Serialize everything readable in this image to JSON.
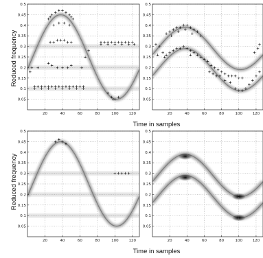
{
  "figure": {
    "x_axis_label": "Time in samples",
    "y_axis_label": "Reduced frequency"
  },
  "chart_data": [
    {
      "type": "scatter",
      "panel": "top-left",
      "xlim": [
        0,
        128
      ],
      "ylim": [
        0,
        0.5
      ],
      "xticks": [
        20,
        40,
        60,
        80,
        100,
        120
      ],
      "yticks": [
        0.05,
        0.1,
        0.15,
        0.2,
        0.25,
        0.3,
        0.35,
        0.4,
        0.45,
        0.5
      ],
      "grid": true,
      "background_curve": {
        "center": 0.25,
        "amplitude": 0.2,
        "period": 128,
        "phase_peak": 38
      },
      "horizontal_bands": [
        0.1,
        0.2,
        0.3
      ],
      "points": [
        [
          28,
          0.45
        ],
        [
          32,
          0.46
        ],
        [
          36,
          0.47
        ],
        [
          40,
          0.47
        ],
        [
          44,
          0.46
        ],
        [
          48,
          0.45
        ],
        [
          26,
          0.44
        ],
        [
          50,
          0.44
        ],
        [
          24,
          0.43
        ],
        [
          52,
          0.43
        ],
        [
          30,
          0.4
        ],
        [
          36,
          0.41
        ],
        [
          42,
          0.41
        ],
        [
          48,
          0.4
        ],
        [
          26,
          0.32
        ],
        [
          30,
          0.32
        ],
        [
          34,
          0.33
        ],
        [
          38,
          0.33
        ],
        [
          42,
          0.33
        ],
        [
          46,
          0.32
        ],
        [
          50,
          0.32
        ],
        [
          24,
          0.22
        ],
        [
          28,
          0.21
        ],
        [
          34,
          0.2
        ],
        [
          40,
          0.2
        ],
        [
          46,
          0.2
        ],
        [
          50,
          0.21
        ],
        [
          8,
          0.11
        ],
        [
          12,
          0.11
        ],
        [
          16,
          0.11
        ],
        [
          20,
          0.11
        ],
        [
          24,
          0.11
        ],
        [
          28,
          0.11
        ],
        [
          32,
          0.11
        ],
        [
          36,
          0.11
        ],
        [
          40,
          0.11
        ],
        [
          44,
          0.11
        ],
        [
          48,
          0.11
        ],
        [
          52,
          0.11
        ],
        [
          56,
          0.11
        ],
        [
          60,
          0.11
        ],
        [
          64,
          0.11
        ],
        [
          8,
          0.1
        ],
        [
          16,
          0.1
        ],
        [
          24,
          0.1
        ],
        [
          32,
          0.1
        ],
        [
          40,
          0.1
        ],
        [
          48,
          0.1
        ],
        [
          56,
          0.1
        ],
        [
          64,
          0.1
        ],
        [
          3,
          0.18
        ],
        [
          5,
          0.2
        ],
        [
          12,
          0.2
        ],
        [
          62,
          0.2
        ],
        [
          66,
          0.25
        ],
        [
          70,
          0.28
        ],
        [
          84,
          0.32
        ],
        [
          88,
          0.32
        ],
        [
          92,
          0.32
        ],
        [
          96,
          0.32
        ],
        [
          100,
          0.32
        ],
        [
          104,
          0.32
        ],
        [
          108,
          0.32
        ],
        [
          112,
          0.32
        ],
        [
          116,
          0.32
        ],
        [
          120,
          0.32
        ],
        [
          84,
          0.31
        ],
        [
          92,
          0.31
        ],
        [
          100,
          0.31
        ],
        [
          108,
          0.31
        ],
        [
          116,
          0.31
        ],
        [
          122,
          0.31
        ],
        [
          96,
          0.06
        ],
        [
          98,
          0.05
        ],
        [
          100,
          0.05
        ],
        [
          104,
          0.06
        ],
        [
          92,
          0.08
        ]
      ]
    },
    {
      "type": "scatter",
      "panel": "top-right",
      "xlim": [
        0,
        128
      ],
      "ylim": [
        0,
        0.5
      ],
      "xticks": [
        20,
        40,
        60,
        80,
        100,
        120
      ],
      "yticks": [
        0.05,
        0.1,
        0.15,
        0.2,
        0.25,
        0.3,
        0.35,
        0.4,
        0.45,
        0.5
      ],
      "grid": true,
      "background_curves": [
        {
          "center": 0.29,
          "amplitude": 0.1,
          "period": 128,
          "phase_peak": 38
        },
        {
          "center": 0.19,
          "amplitude": 0.1,
          "period": 128,
          "phase_peak": 38
        }
      ],
      "points": [
        [
          16,
          0.36
        ],
        [
          20,
          0.37
        ],
        [
          24,
          0.38
        ],
        [
          28,
          0.39
        ],
        [
          32,
          0.39
        ],
        [
          36,
          0.4
        ],
        [
          40,
          0.4
        ],
        [
          44,
          0.39
        ],
        [
          48,
          0.38
        ],
        [
          52,
          0.37
        ],
        [
          56,
          0.35
        ],
        [
          22,
          0.35
        ],
        [
          30,
          0.37
        ],
        [
          38,
          0.38
        ],
        [
          46,
          0.36
        ],
        [
          4,
          0.31
        ],
        [
          8,
          0.3
        ],
        [
          12,
          0.27
        ],
        [
          16,
          0.26
        ],
        [
          20,
          0.27
        ],
        [
          24,
          0.28
        ],
        [
          28,
          0.29
        ],
        [
          32,
          0.29
        ],
        [
          36,
          0.3
        ],
        [
          40,
          0.29
        ],
        [
          44,
          0.28
        ],
        [
          48,
          0.27
        ],
        [
          52,
          0.26
        ],
        [
          56,
          0.25
        ],
        [
          6,
          0.26
        ],
        [
          14,
          0.25
        ],
        [
          44,
          0.26
        ],
        [
          60,
          0.24
        ],
        [
          64,
          0.23
        ],
        [
          68,
          0.21
        ],
        [
          72,
          0.2
        ],
        [
          76,
          0.19
        ],
        [
          80,
          0.18
        ],
        [
          84,
          0.17
        ],
        [
          88,
          0.16
        ],
        [
          92,
          0.16
        ],
        [
          96,
          0.16
        ],
        [
          100,
          0.15
        ],
        [
          104,
          0.15
        ],
        [
          66,
          0.18
        ],
        [
          70,
          0.17
        ],
        [
          74,
          0.16
        ],
        [
          78,
          0.16
        ],
        [
          84,
          0.14
        ],
        [
          90,
          0.13
        ],
        [
          96,
          0.1
        ],
        [
          100,
          0.09
        ],
        [
          104,
          0.09
        ],
        [
          108,
          0.1
        ],
        [
          112,
          0.12
        ],
        [
          116,
          0.14
        ],
        [
          120,
          0.16
        ],
        [
          124,
          0.18
        ],
        [
          118,
          0.27
        ],
        [
          122,
          0.29
        ],
        [
          124,
          0.31
        ]
      ]
    },
    {
      "type": "scatter",
      "panel": "bottom-left",
      "xlim": [
        0,
        128
      ],
      "ylim": [
        0,
        0.5
      ],
      "xticks": [
        20,
        40,
        60,
        80,
        100,
        120
      ],
      "yticks": [
        0.05,
        0.1,
        0.15,
        0.2,
        0.25,
        0.3,
        0.35,
        0.4,
        0.45,
        0.5
      ],
      "grid": true,
      "background_curve": {
        "center": 0.25,
        "amplitude": 0.2,
        "period": 128,
        "phase_peak": 38
      },
      "horizontal_bands": [
        0.1,
        0.2,
        0.3
      ],
      "points": [
        [
          32,
          0.45
        ],
        [
          36,
          0.46
        ],
        [
          40,
          0.45
        ],
        [
          44,
          0.44
        ],
        [
          100,
          0.3
        ],
        [
          104,
          0.3
        ],
        [
          108,
          0.3
        ],
        [
          112,
          0.3
        ],
        [
          116,
          0.3
        ]
      ]
    },
    {
      "type": "heatmap",
      "panel": "bottom-right",
      "xlim": [
        0,
        128
      ],
      "ylim": [
        0,
        0.5
      ],
      "xticks": [
        20,
        40,
        60,
        80,
        100,
        120
      ],
      "yticks": [
        0.05,
        0.1,
        0.15,
        0.2,
        0.25,
        0.3,
        0.35,
        0.4,
        0.45,
        0.5
      ],
      "grid": true,
      "background_curves": [
        {
          "center": 0.29,
          "amplitude": 0.1,
          "period": 128,
          "phase_peak": 38
        },
        {
          "center": 0.19,
          "amplitude": 0.1,
          "period": 128,
          "phase_peak": 38
        }
      ],
      "hotspots": [
        [
          38,
          0.38
        ],
        [
          38,
          0.28
        ],
        [
          100,
          0.09
        ],
        [
          100,
          0.19
        ]
      ]
    }
  ]
}
